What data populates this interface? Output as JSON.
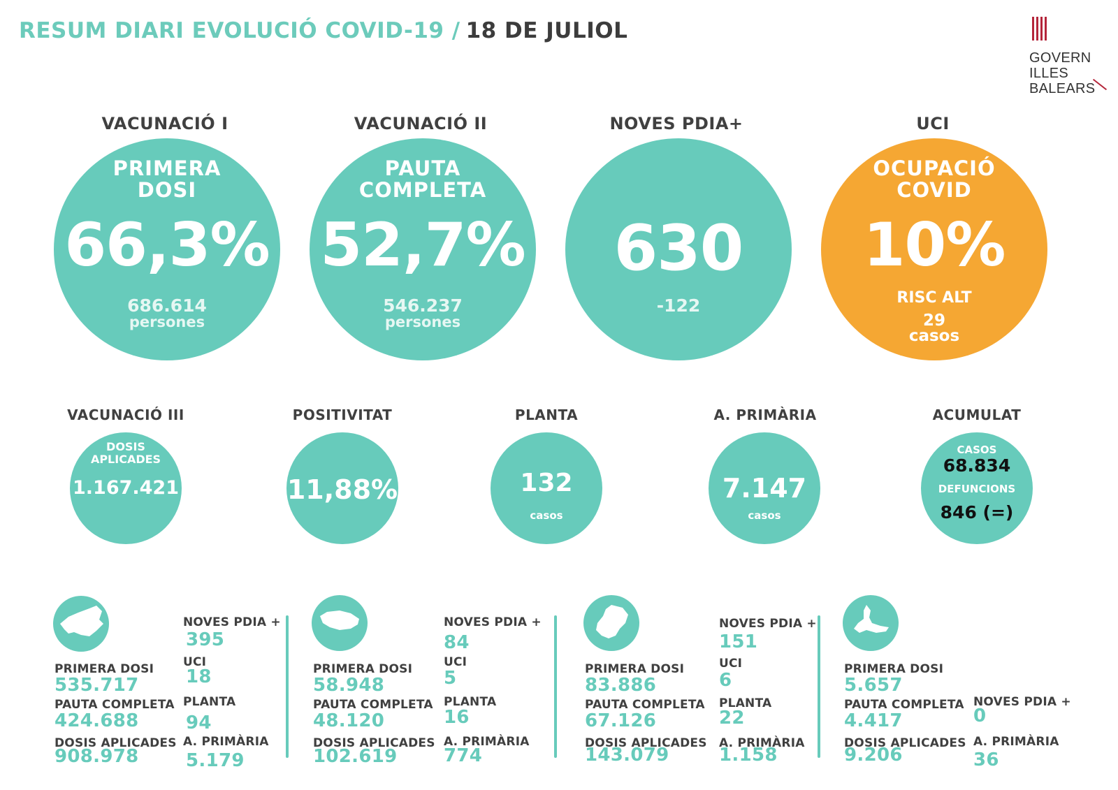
{
  "header": {
    "title": "RESUM DIARI EVOLUCIÓ COVID-19 /",
    "date": "18 DE JULIOL"
  },
  "logo": {
    "line1": "GOVERN",
    "line2": "ILLES",
    "line3": "BALEARS",
    "icon": "govern-illes-balears-logo"
  },
  "colors": {
    "teal": "#67cbbb",
    "orange": "#f5a733",
    "dark_text": "#3c3c3c"
  },
  "big_stats": [
    {
      "label": "VACUNACIÓ I",
      "sub_line1": "PRIMERA",
      "sub_line2": "DOSI",
      "value": "66,3%",
      "foot1": "686.614",
      "foot2": "persones"
    },
    {
      "label": "VACUNACIÓ II",
      "sub_line1": "PAUTA",
      "sub_line2": "COMPLETA",
      "value": "52,7%",
      "foot1": "546.237",
      "foot2": "persones"
    },
    {
      "label": "NOVES PDIA+",
      "value": "630",
      "foot1": "-122"
    },
    {
      "label": "UCI",
      "sub_line1": "OCUPACIÓ",
      "sub_line2": "COVID",
      "value": "10%",
      "foot1": "RISC ALT",
      "foot2": "29",
      "foot3": "casos"
    }
  ],
  "mid_stats": [
    {
      "label": "VACUNACIÓ III",
      "sub_line1": "DOSIS",
      "sub_line2": "APLICADES",
      "value": "1.167.421"
    },
    {
      "label": "POSITIVITAT",
      "value": "11,88%"
    },
    {
      "label": "PLANTA",
      "value": "132",
      "unit": "casos"
    },
    {
      "label": "A. PRIMÀRIA",
      "value": "7.147",
      "unit": "casos"
    },
    {
      "label": "ACUMULAT",
      "cases_label": "CASOS",
      "cases_value": "68.834",
      "deaths_label": "DEFUNCIONS",
      "deaths_value": "846 (=)"
    }
  ],
  "islands": [
    {
      "icon": "mallorca-map-icon",
      "primera_dosi_label": "PRIMERA DOSI",
      "primera_dosi": "535.717",
      "pauta_completa_label": "PAUTA COMPLETA",
      "pauta_completa": "424.688",
      "dosis_aplicades_label": "DOSIS APLICADES",
      "dosis_aplicades": "908.978",
      "noves_pdia_label": "NOVES PDIA +",
      "noves_pdia": "395",
      "uci_label": "UCI",
      "uci": "18",
      "planta_label": "PLANTA",
      "planta": "94",
      "primaria_label": "A. PRIMÀRIA",
      "primaria": "5.179"
    },
    {
      "icon": "menorca-map-icon",
      "primera_dosi_label": "PRIMERA DOSI",
      "primera_dosi": "58.948",
      "pauta_completa_label": "PAUTA COMPLETA",
      "pauta_completa": "48.120",
      "dosis_aplicades_label": "DOSIS APLICADES",
      "dosis_aplicades": "102.619",
      "noves_pdia_label": "NOVES PDIA +",
      "noves_pdia": "84",
      "uci_label": "UCI",
      "uci": "5",
      "planta_label": "PLANTA",
      "planta": "16",
      "primaria_label": "A. PRIMÀRIA",
      "primaria": "774"
    },
    {
      "icon": "eivissa-map-icon",
      "primera_dosi_label": "PRIMERA DOSI",
      "primera_dosi": "83.886",
      "pauta_completa_label": "PAUTA COMPLETA",
      "pauta_completa": "67.126",
      "dosis_aplicades_label": "DOSIS APLICADES",
      "dosis_aplicades": "143.079",
      "noves_pdia_label": "NOVES PDIA +",
      "noves_pdia": "151",
      "uci_label": "UCI",
      "uci": "6",
      "planta_label": "PLANTA",
      "planta": "22",
      "primaria_label": "A. PRIMÀRIA",
      "primaria": "1.158"
    },
    {
      "icon": "formentera-map-icon",
      "primera_dosi_label": "PRIMERA DOSI",
      "primera_dosi": "5.657",
      "pauta_completa_label": "PAUTA COMPLETA",
      "pauta_completa": "4.417",
      "dosis_aplicades_label": "DOSIS APLICADES",
      "dosis_aplicades": "9.206",
      "noves_pdia_label": "NOVES PDIA +",
      "noves_pdia": "0",
      "primaria_label": "A. PRIMÀRIA",
      "primaria": "36"
    }
  ]
}
